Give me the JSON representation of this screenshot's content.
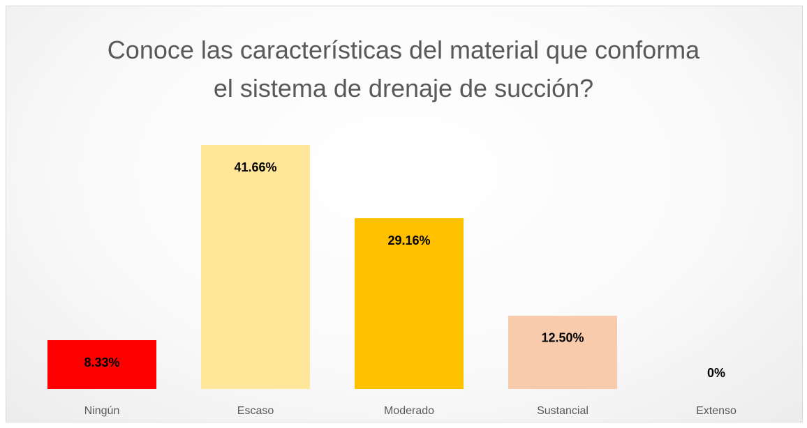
{
  "chart_data": {
    "type": "bar",
    "title": "Conoce las características del material que conforma el sistema de drenaje de succión?",
    "categories": [
      "Ningún",
      "Escaso",
      "Moderado",
      "Sustancial",
      "Extenso"
    ],
    "values": [
      8.33,
      41.66,
      29.16,
      12.5,
      0
    ],
    "value_labels": [
      "8.33%",
      "41.66%",
      "29.16%",
      "12.50%",
      "0%"
    ],
    "colors": [
      "#ff0000",
      "#ffe699",
      "#ffc000",
      "#f8cbad",
      "#ed7d31"
    ]
  }
}
